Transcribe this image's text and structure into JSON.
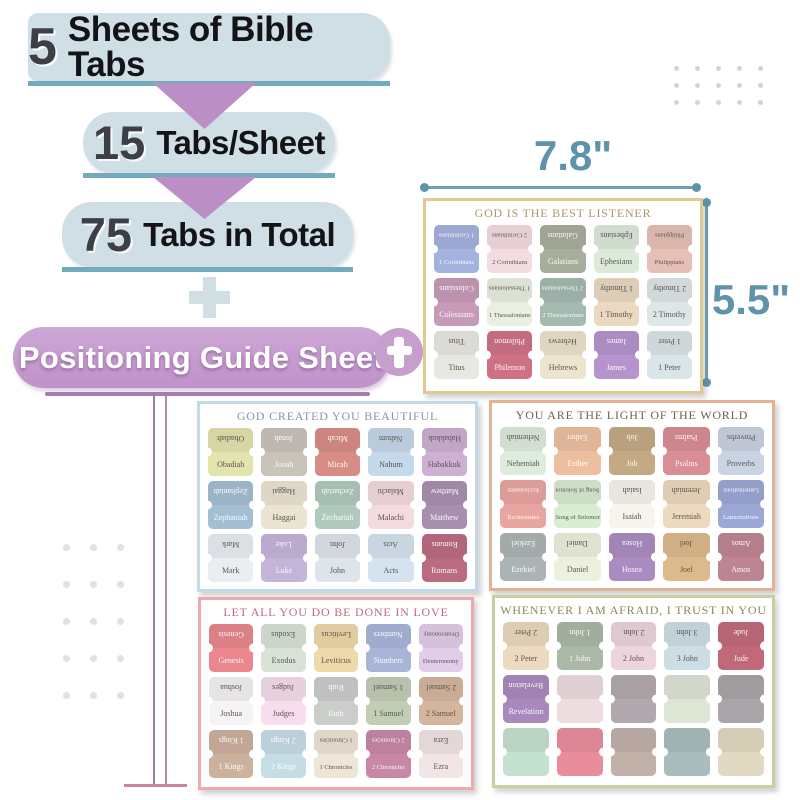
{
  "badges": {
    "sheets": {
      "number": "5",
      "text": "Sheets of Bible Tabs"
    },
    "per_sheet": {
      "number": "15",
      "text": "Tabs/Sheet"
    },
    "total": {
      "number": "75",
      "text": "Tabs in Total"
    },
    "guide": "Positioning Guide Sheet"
  },
  "measurements": {
    "width": "7.8\"",
    "height": "5.5\"",
    "accent": "#5f93a9"
  },
  "decor": {
    "arrow_color": "#bb8ec6",
    "banner_bg": "#cfdfe5",
    "banner_underline": "#74aabe",
    "pill_underline": "#a87cb4",
    "cross_badge_bg": "#c79fcd",
    "line_left": "#9d7cab",
    "line_right": "#b487a9",
    "line_foot": "#cf8398",
    "dots_topright": {
      "cols": 5,
      "rows": 3,
      "color": "#ddcbe0"
    },
    "dots_left": {
      "cols": 3,
      "rows": 5,
      "color": "#dbe3ea"
    }
  },
  "sheets": [
    {
      "title": "GOD IS THE BEST LISTENER",
      "title_color": "#ac9768",
      "border_color": "#dfca92",
      "tabs": [
        {
          "label": "1 Corinthians",
          "color": "#a3b2de",
          "text": "light"
        },
        {
          "label": "2 Corinthians",
          "color": "#f4dde2",
          "text": "dark"
        },
        {
          "label": "Galatians",
          "color": "#a7ae9c",
          "text": "light"
        },
        {
          "label": "Ephesians",
          "color": "#dcead9",
          "text": "dark"
        },
        {
          "label": "Philippians",
          "color": "#e6c0b6",
          "text": "dark"
        },
        {
          "label": "Colossians",
          "color": "#c79ab8",
          "text": "light"
        },
        {
          "label": "1 Thessalonians",
          "color": "#e9f0e2",
          "text": "dark"
        },
        {
          "label": "2 Thessalonians",
          "color": "#a2bab0",
          "text": "light"
        },
        {
          "label": "1 Timothy",
          "color": "#ead9c0",
          "text": "dark"
        },
        {
          "label": "2 Timothy",
          "color": "#dde7e7",
          "text": "dark"
        },
        {
          "label": "Titus",
          "color": "#e8e8e2",
          "text": "dark"
        },
        {
          "label": "Philemon",
          "color": "#ce7185",
          "text": "light"
        },
        {
          "label": "Hebrews",
          "color": "#ece4cd",
          "text": "dark"
        },
        {
          "label": "James",
          "color": "#b593cd",
          "text": "light"
        },
        {
          "label": "1 Peter",
          "color": "#d9e5e8",
          "text": "dark"
        }
      ]
    },
    {
      "title": "GOD CREATED YOU BEAUTIFUL",
      "title_color": "#8d93a0",
      "border_color": "#c3dae6",
      "tabs": [
        {
          "label": "Obadiah",
          "color": "#e3e3ad",
          "text": "dark"
        },
        {
          "label": "Jonah",
          "color": "#c8c4ba",
          "text": "light"
        },
        {
          "label": "Micah",
          "color": "#d78d85",
          "text": "light"
        },
        {
          "label": "Nahum",
          "color": "#c4d9e9",
          "text": "dark"
        },
        {
          "label": "Habakkuk",
          "color": "#cdb0d2",
          "text": "dark"
        },
        {
          "label": "Zephaniah",
          "color": "#a3bfd3",
          "text": "light"
        },
        {
          "label": "Haggai",
          "color": "#ebe4d2",
          "text": "dark"
        },
        {
          "label": "Zechariah",
          "color": "#afcabc",
          "text": "light"
        },
        {
          "label": "Malachi",
          "color": "#f3dbdf",
          "text": "dark"
        },
        {
          "label": "Matthew",
          "color": "#a88fb0",
          "text": "light"
        },
        {
          "label": "Mark",
          "color": "#e9eef3",
          "text": "dark"
        },
        {
          "label": "Luke",
          "color": "#c4b4d9",
          "text": "light"
        },
        {
          "label": "John",
          "color": "#dde5eb",
          "text": "dark"
        },
        {
          "label": "Acts",
          "color": "#d4e3ef",
          "text": "dark"
        },
        {
          "label": "Romans",
          "color": "#ba6b80",
          "text": "light"
        }
      ]
    },
    {
      "title": "YOU ARE THE LIGHT OF THE WORLD",
      "title_color": "#6d6252",
      "border_color": "#e2b297",
      "tabs": [
        {
          "label": "Nehemiah",
          "color": "#ddecdd",
          "text": "dark"
        },
        {
          "label": "Esther",
          "color": "#edbf9f",
          "text": "light"
        },
        {
          "label": "Job",
          "color": "#c4aa84",
          "text": "light"
        },
        {
          "label": "Psalms",
          "color": "#d98d94",
          "text": "light"
        },
        {
          "label": "Proverbs",
          "color": "#c9d3e3",
          "text": "dark"
        },
        {
          "label": "Ecclesiastes",
          "color": "#e9a6a1",
          "text": "light"
        },
        {
          "label": "Song of Solomon",
          "color": "#d8edd1",
          "text": "dark"
        },
        {
          "label": "Isaiah",
          "color": "#f7f4ed",
          "text": "dark"
        },
        {
          "label": "Jeremiah",
          "color": "#edd9bd",
          "text": "dark"
        },
        {
          "label": "Lamentations",
          "color": "#9ba7d5",
          "text": "light"
        },
        {
          "label": "Ezekiel",
          "color": "#aab4b4",
          "text": "light"
        },
        {
          "label": "Daniel",
          "color": "#ebf1dd",
          "text": "dark"
        },
        {
          "label": "Hosea",
          "color": "#aa8cc1",
          "text": "light"
        },
        {
          "label": "Joel",
          "color": "#ddba8b",
          "text": "dark"
        },
        {
          "label": "Amos",
          "color": "#bd8591",
          "text": "light"
        }
      ]
    },
    {
      "title": "LET ALL YOU DO BE DONE IN LOVE",
      "title_color": "#c26b79",
      "border_color": "#eda8b2",
      "tabs": [
        {
          "label": "Genesis",
          "color": "#e9878d",
          "text": "light"
        },
        {
          "label": "Exodus",
          "color": "#d8e3d5",
          "text": "dark"
        },
        {
          "label": "Leviticus",
          "color": "#edd9a9",
          "text": "dark"
        },
        {
          "label": "Numbers",
          "color": "#a8b5d9",
          "text": "light"
        },
        {
          "label": "Deuteronomy",
          "color": "#e1cde9",
          "text": "dark"
        },
        {
          "label": "Joshua",
          "color": "#f5f3f5",
          "text": "dark"
        },
        {
          "label": "Judges",
          "color": "#f7dded",
          "text": "dark"
        },
        {
          "label": "Ruth",
          "color": "#cacdca",
          "text": "light"
        },
        {
          "label": "1 Samuel",
          "color": "#c1cdb5",
          "text": "dark"
        },
        {
          "label": "2 Samuel",
          "color": "#d5b59d",
          "text": "dark"
        },
        {
          "label": "1 Kings",
          "color": "#ccb19d",
          "text": "light"
        },
        {
          "label": "2 Kings",
          "color": "#c5dde5",
          "text": "light"
        },
        {
          "label": "1 Chronicles",
          "color": "#ede5d5",
          "text": "dark"
        },
        {
          "label": "2 Chronicles",
          "color": "#c888a5",
          "text": "light"
        },
        {
          "label": "Ezra",
          "color": "#f1e5e5",
          "text": "dark"
        }
      ]
    },
    {
      "title": "WHENEVER I AM AFRAID, I TRUST IN YOU",
      "title_color": "#8a8a56",
      "border_color": "#c7d09f",
      "tabs": [
        {
          "label": "2 Peter",
          "color": "#ebdabd",
          "text": "dark"
        },
        {
          "label": "1 John",
          "color": "#aab9a5",
          "text": "light"
        },
        {
          "label": "2 John",
          "color": "#edd5dd",
          "text": "dark"
        },
        {
          "label": "3 John",
          "color": "#cddde5",
          "text": "dark"
        },
        {
          "label": "Jude",
          "color": "#c16979",
          "text": "light"
        },
        {
          "label": "Revelation",
          "color": "#a989bd",
          "text": "light"
        },
        {
          "label": "",
          "color": "#eddde1",
          "text": "dark"
        },
        {
          "label": "",
          "color": "#b1a9ad",
          "text": "dark"
        },
        {
          "label": "",
          "color": "#dde5d5",
          "text": "dark"
        },
        {
          "label": "",
          "color": "#a9a5a9",
          "text": "dark"
        },
        {
          "label": "",
          "color": "#c5e1d1",
          "text": "dark"
        },
        {
          "label": "",
          "color": "#e98d9d",
          "text": "dark"
        },
        {
          "label": "",
          "color": "#c1b1a9",
          "text": "dark"
        },
        {
          "label": "",
          "color": "#a9bdbd",
          "text": "dark"
        },
        {
          "label": "",
          "color": "#e1d9c1",
          "text": "dark"
        }
      ]
    }
  ]
}
